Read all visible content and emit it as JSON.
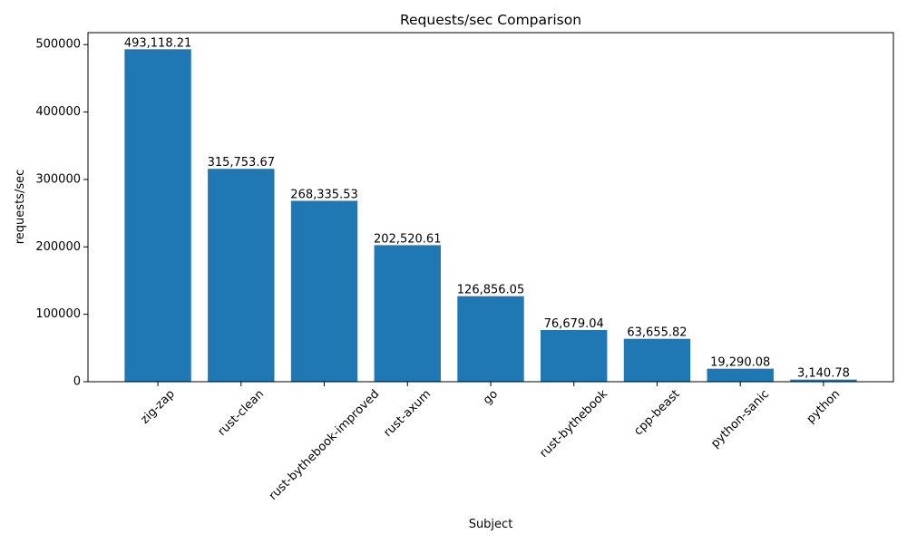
{
  "chart_data": {
    "type": "bar",
    "title": "Requests/sec Comparison",
    "xlabel": "Subject",
    "ylabel": "requests/sec",
    "categories": [
      "zig-zap",
      "rust-clean",
      "rust-bythebook-improved",
      "rust-axum",
      "go",
      "rust-bythebook",
      "cpp-beast",
      "python-sanic",
      "python"
    ],
    "values": [
      493118.21,
      315753.67,
      268335.53,
      202520.61,
      126856.05,
      76679.04,
      63655.82,
      19290.08,
      3140.78
    ],
    "data_labels": [
      "493,118.21",
      "315,753.67",
      "268,335.53",
      "202,520.61",
      "126,856.05",
      "76,679.04",
      "63,655.82",
      "19,290.08",
      "3,140.78"
    ],
    "ylim": [
      0,
      517774
    ],
    "yticks": [
      0,
      100000,
      200000,
      300000,
      400000,
      500000
    ],
    "ytick_labels": [
      "0",
      "100000",
      "200000",
      "300000",
      "400000",
      "500000"
    ],
    "xtick_rotation": 45,
    "grid": false,
    "bar_color": "#1f77b4"
  }
}
